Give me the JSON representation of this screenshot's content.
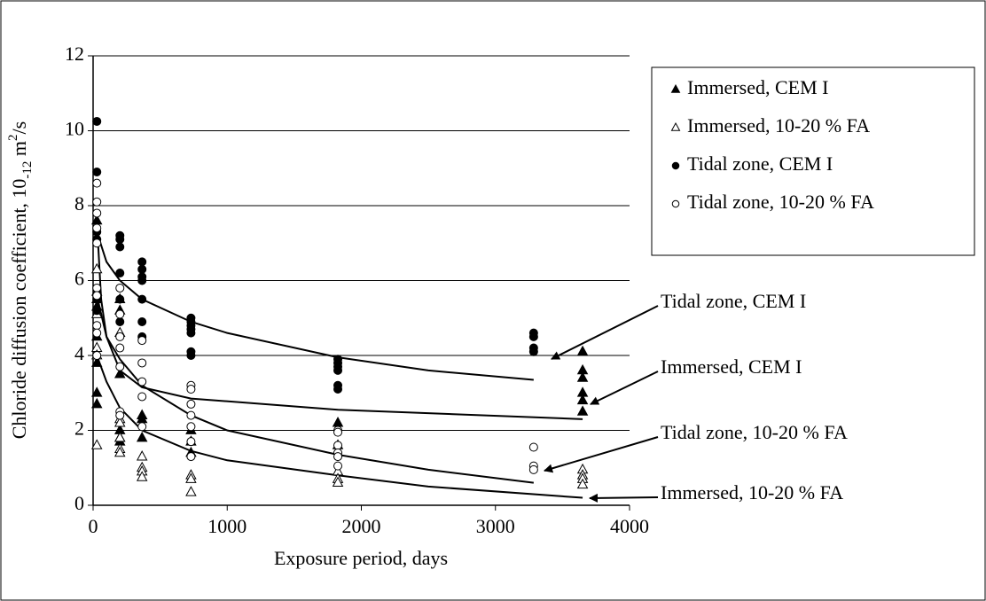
{
  "chart_data": {
    "type": "scatter",
    "xlabel": "Exposure period, days",
    "ylabel_parts": [
      "Chloride diffusion coefficient, 10",
      "-12",
      " m",
      "2",
      "/s"
    ],
    "xlim": [
      0,
      4000
    ],
    "xticks": [
      0,
      1000,
      2000,
      3000,
      4000
    ],
    "ylim": [
      0,
      12
    ],
    "yticks": [
      0,
      2,
      4,
      6,
      8,
      10,
      12
    ],
    "grid": true,
    "legend": "upper right",
    "series": [
      {
        "name": "Immersed, CEM I",
        "marker": "triangle",
        "color": "#000",
        "fill": "#000",
        "x": [
          28,
          28,
          28,
          28,
          28,
          28,
          28,
          200,
          200,
          200,
          200,
          200,
          200,
          365,
          365,
          365,
          730,
          730,
          730,
          1825,
          1825,
          3650,
          3650,
          3650,
          3650,
          3650,
          3650
        ],
        "values": [
          7.6,
          5.5,
          5.3,
          4.5,
          3.8,
          3.0,
          2.7,
          5.5,
          5.2,
          3.5,
          2.0,
          1.8,
          1.7,
          2.4,
          2.3,
          1.8,
          2.0,
          1.7,
          1.4,
          2.2,
          1.6,
          4.1,
          3.6,
          3.4,
          3.0,
          2.8,
          2.5
        ]
      },
      {
        "name": "Immersed, 10-20 % FA",
        "marker": "triangle",
        "color": "#000",
        "fill": "#fff",
        "x": [
          28,
          28,
          28,
          28,
          28,
          28,
          200,
          200,
          200,
          200,
          200,
          200,
          365,
          365,
          365,
          365,
          730,
          730,
          730,
          1825,
          1825,
          1825,
          3650,
          3650,
          3650,
          3650
        ],
        "values": [
          6.3,
          5.7,
          5.1,
          4.2,
          4.0,
          1.6,
          4.6,
          2.3,
          2.2,
          1.8,
          1.5,
          1.4,
          1.3,
          1.0,
          0.9,
          0.75,
          0.8,
          0.7,
          0.35,
          0.9,
          0.7,
          0.6,
          0.95,
          0.8,
          0.7,
          0.55
        ]
      },
      {
        "name": "Tidal zone, CEM I",
        "marker": "circle",
        "color": "#000",
        "fill": "#000",
        "x": [
          28,
          28,
          28,
          28,
          28,
          28,
          200,
          200,
          200,
          200,
          200,
          200,
          365,
          365,
          365,
          365,
          365,
          365,
          365,
          730,
          730,
          730,
          730,
          730,
          730,
          730,
          1825,
          1825,
          1825,
          1825,
          1825,
          1825,
          3285,
          3285,
          3285,
          3285
        ],
        "values": [
          10.25,
          8.9,
          7.3,
          7.1,
          5.5,
          5.2,
          7.2,
          7.1,
          6.9,
          6.2,
          5.5,
          4.9,
          6.5,
          6.3,
          6.1,
          6.0,
          5.5,
          4.9,
          4.5,
          5.0,
          4.9,
          4.8,
          4.7,
          4.6,
          4.1,
          4.0,
          3.9,
          3.8,
          3.7,
          3.6,
          3.2,
          3.1,
          4.6,
          4.5,
          4.2,
          4.1
        ]
      },
      {
        "name": "Tidal zone, 10-20 % FA",
        "marker": "circle",
        "color": "#000",
        "fill": "#fff",
        "x": [
          28,
          28,
          28,
          28,
          28,
          28,
          28,
          28,
          28,
          28,
          200,
          200,
          200,
          200,
          200,
          200,
          200,
          365,
          365,
          365,
          365,
          365,
          730,
          730,
          730,
          730,
          730,
          730,
          730,
          1825,
          1825,
          1825,
          1825,
          1825,
          1825,
          3285,
          3285,
          3285
        ],
        "values": [
          8.6,
          8.1,
          7.8,
          7.4,
          7.0,
          5.8,
          5.6,
          4.8,
          4.6,
          4.0,
          5.8,
          5.1,
          4.5,
          4.2,
          3.7,
          2.5,
          2.4,
          4.4,
          3.8,
          3.3,
          2.9,
          2.1,
          3.2,
          3.1,
          2.7,
          2.4,
          2.1,
          1.7,
          1.3,
          2.0,
          1.95,
          1.6,
          1.4,
          1.3,
          1.05,
          1.55,
          1.05,
          0.95
        ]
      }
    ],
    "trend_lines": [
      {
        "label": "Tidal zone, CEM I",
        "x": [
          28,
          100,
          200,
          365,
          730,
          1000,
          1825,
          2500,
          3285
        ],
        "values": [
          7.3,
          6.5,
          6.0,
          5.5,
          4.9,
          4.6,
          3.95,
          3.6,
          3.35
        ]
      },
      {
        "label": "Immersed, CEM I",
        "x": [
          28,
          60,
          100,
          200,
          365,
          730,
          1825,
          3650
        ],
        "values": [
          7.6,
          5.5,
          4.5,
          3.6,
          3.15,
          2.85,
          2.55,
          2.3
        ]
      },
      {
        "label": "Tidal zone, 10-20 % FA",
        "x": [
          28,
          100,
          200,
          365,
          730,
          1000,
          1825,
          2500,
          3285
        ],
        "values": [
          5.6,
          4.5,
          3.9,
          3.2,
          2.4,
          2.0,
          1.35,
          0.95,
          0.6
        ]
      },
      {
        "label": "Immersed, 10-20 % FA",
        "x": [
          28,
          100,
          200,
          365,
          730,
          1000,
          1825,
          2500,
          3650
        ],
        "values": [
          4.0,
          3.3,
          2.6,
          2.0,
          1.45,
          1.2,
          0.8,
          0.5,
          0.2
        ]
      }
    ]
  }
}
